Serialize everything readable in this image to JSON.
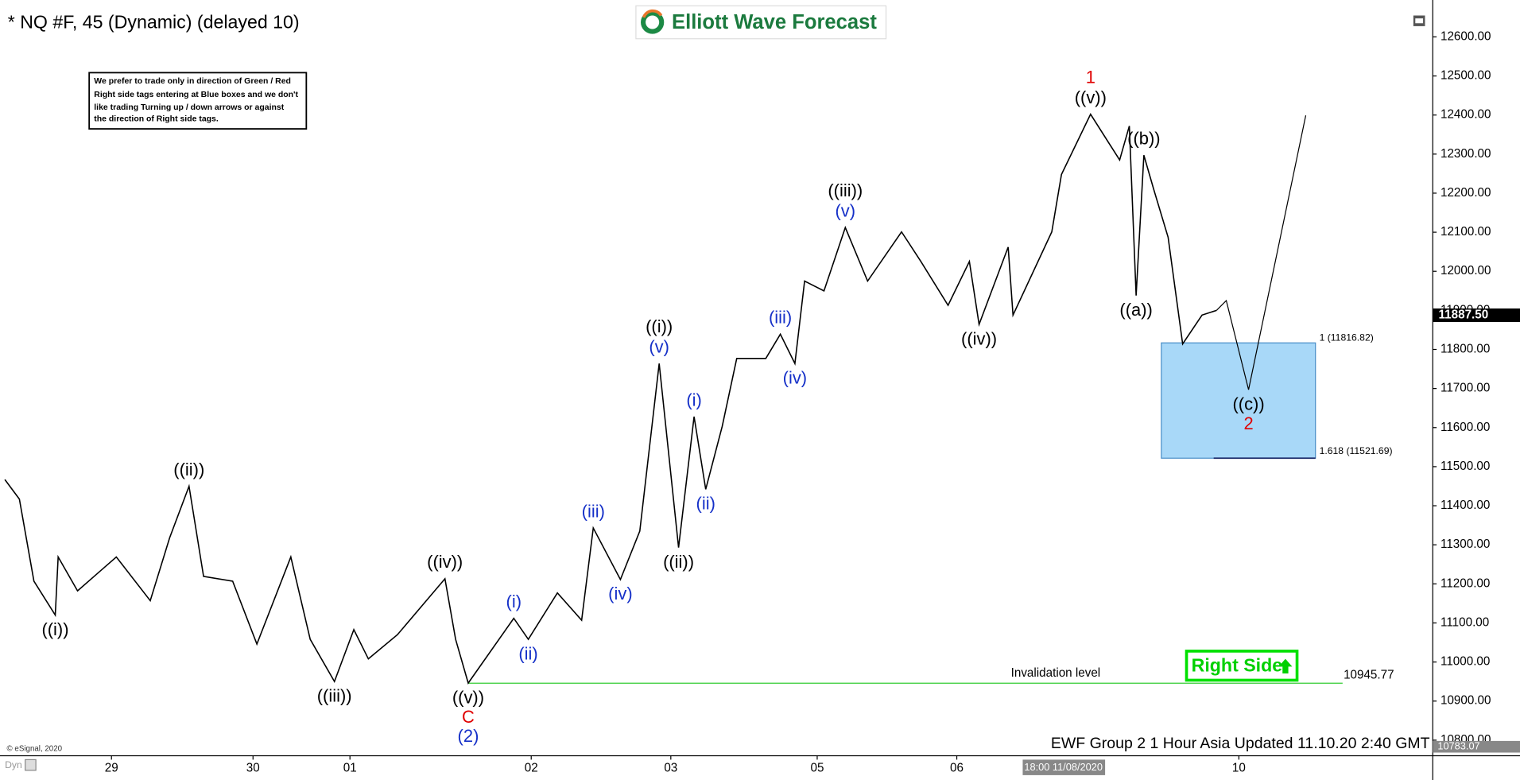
{
  "chart_data": {
    "type": "line",
    "title": "* NQ #F, 45 (Dynamic) (delayed 10)",
    "logo": "Elliott Wave Forecast",
    "note": [
      "We prefer to trade only in direction of Green / Red",
      "Right side tags entering at Blue boxes and we don't",
      "like trading Turning up / down arrows or against",
      "the direction of Right side tags."
    ],
    "footer": "EWF Group 2   1 Hour Asia Updated 11.10.20 2:40 GMT",
    "copyright": "© eSignal, 2020",
    "corner_label": "Dyn",
    "crosshair_label": "18:00 11/08/2020",
    "right_side_tag": "Right Side",
    "xlim": [
      0,
      1473
    ],
    "xticks": [
      {
        "value": 110,
        "label": "29"
      },
      {
        "value": 256,
        "label": "30"
      },
      {
        "value": 356,
        "label": "01"
      },
      {
        "value": 543,
        "label": "02"
      },
      {
        "value": 687,
        "label": "03"
      },
      {
        "value": 838,
        "label": "05"
      },
      {
        "value": 982,
        "label": "06"
      },
      {
        "value": 1273,
        "label": "10"
      }
    ],
    "ylim": [
      10760,
      12682
    ],
    "yticks": [
      {
        "value": 10800,
        "label": "10800.00"
      },
      {
        "value": 10900,
        "label": "10900.00"
      },
      {
        "value": 11000,
        "label": "11000.00"
      },
      {
        "value": 11100,
        "label": "11100.00"
      },
      {
        "value": 11200,
        "label": "11200.00"
      },
      {
        "value": 11300,
        "label": "11300.00"
      },
      {
        "value": 11400,
        "label": "11400.00"
      },
      {
        "value": 11500,
        "label": "11500.00"
      },
      {
        "value": 11600,
        "label": "11600.00"
      },
      {
        "value": 11700,
        "label": "11700.00"
      },
      {
        "value": 11800,
        "label": "11800.00"
      },
      {
        "value": 11900,
        "label": "11900.00"
      },
      {
        "value": 12000,
        "label": "12000.00"
      },
      {
        "value": 12100,
        "label": "12100.00"
      },
      {
        "value": 12200,
        "label": "12200.00"
      },
      {
        "value": 12300,
        "label": "12300.00"
      },
      {
        "value": 12400,
        "label": "12400.00"
      },
      {
        "value": 12500,
        "label": "12500.00"
      },
      {
        "value": 12600,
        "label": "12600.00"
      }
    ],
    "series": [
      {
        "color": "#000000",
        "x": [
          0,
          15,
          30,
          52,
          55,
          75,
          115,
          150,
          170,
          190,
          205,
          235,
          260,
          295,
          315,
          340,
          360,
          375,
          405,
          454,
          465,
          478,
          525,
          540,
          570,
          595,
          607,
          635,
          655,
          675,
          695,
          711,
          723,
          740,
          755,
          785,
          800,
          815,
          825,
          845,
          867,
          890,
          925,
          945,
          973,
          995,
          1005,
          1035,
          1040,
          1080,
          1090,
          1120,
          1150,
          1160,
          1167,
          1175,
          1185,
          1200,
          1215,
          1235,
          1250
        ],
        "values": [
          11467,
          11417,
          11207,
          11120,
          11269,
          11182,
          11269,
          11157,
          11318,
          11450,
          11219,
          11207,
          11046,
          11269,
          11058,
          10950,
          11083,
          11008,
          11070,
          11213,
          11058,
          10946,
          11112,
          11058,
          11177,
          11107,
          11343,
          11211,
          11335,
          11764,
          11293,
          11628,
          11442,
          11603,
          11777,
          11777,
          11839,
          11764,
          11975,
          11950,
          12112,
          11975,
          12101,
          12025,
          11913,
          12025,
          11864,
          12062,
          11888,
          12101,
          12248,
          12402,
          12285,
          12372,
          11938,
          12297,
          12211,
          12087,
          11814,
          11888,
          11900
        ]
      },
      {
        "color": "#000000",
        "x": [
          1250,
          1260,
          1283,
          1342
        ],
        "values": [
          11900,
          11925,
          11697,
          12399
        ]
      }
    ],
    "annotations": [
      {
        "series": 0,
        "point": 3,
        "side": "below",
        "labels": [
          {
            "text": "((i))",
            "color": "#000000"
          }
        ]
      },
      {
        "series": 0,
        "point": 9,
        "side": "above",
        "labels": [
          {
            "text": "((ii))",
            "color": "#000000"
          }
        ]
      },
      {
        "series": 0,
        "point": 15,
        "side": "below",
        "labels": [
          {
            "text": "((iii))",
            "color": "#000000"
          }
        ]
      },
      {
        "series": 0,
        "point": 19,
        "side": "above",
        "labels": [
          {
            "text": "((iv))",
            "color": "#000000"
          }
        ]
      },
      {
        "series": 0,
        "point": 21,
        "side": "below",
        "labels": [
          {
            "text": "((v))",
            "color": "#000000"
          },
          {
            "text": "C",
            "color": "#e00000"
          },
          {
            "text": "(2)",
            "color": "#1530c8"
          }
        ]
      },
      {
        "series": 0,
        "point": 22,
        "side": "above",
        "labels": [
          {
            "text": "(i)",
            "color": "#1530c8"
          }
        ]
      },
      {
        "series": 0,
        "point": 23,
        "side": "below",
        "labels": [
          {
            "text": "(ii)",
            "color": "#1530c8"
          }
        ]
      },
      {
        "series": 0,
        "point": 26,
        "side": "above",
        "labels": [
          {
            "text": "(iii)",
            "color": "#1530c8"
          }
        ]
      },
      {
        "series": 0,
        "point": 27,
        "side": "below",
        "labels": [
          {
            "text": "(iv)",
            "color": "#1530c8"
          }
        ]
      },
      {
        "series": 0,
        "point": 29,
        "side": "above",
        "labels": [
          {
            "text": "(v)",
            "color": "#1530c8"
          },
          {
            "text": "((i))",
            "color": "#000000"
          }
        ]
      },
      {
        "series": 0,
        "point": 30,
        "side": "below",
        "labels": [
          {
            "text": "((ii))",
            "color": "#000000"
          }
        ]
      },
      {
        "series": 0,
        "point": 31,
        "side": "above",
        "labels": [
          {
            "text": "(i)",
            "color": "#1530c8"
          }
        ]
      },
      {
        "series": 0,
        "point": 32,
        "side": "below",
        "labels": [
          {
            "text": "(ii)",
            "color": "#1530c8"
          }
        ]
      },
      {
        "series": 0,
        "point": 36,
        "side": "above",
        "labels": [
          {
            "text": "(iii)",
            "color": "#1530c8"
          }
        ]
      },
      {
        "series": 0,
        "point": 37,
        "side": "below",
        "labels": [
          {
            "text": "(iv)",
            "color": "#1530c8"
          }
        ]
      },
      {
        "series": 0,
        "point": 40,
        "side": "above",
        "labels": [
          {
            "text": "(v)",
            "color": "#1530c8"
          },
          {
            "text": "((iii))",
            "color": "#000000"
          }
        ]
      },
      {
        "series": 0,
        "point": 46,
        "side": "below",
        "labels": [
          {
            "text": "((iv))",
            "color": "#000000"
          }
        ]
      },
      {
        "series": 0,
        "point": 51,
        "side": "above",
        "labels": [
          {
            "text": "((v))",
            "color": "#000000"
          },
          {
            "text": "1",
            "color": "#e00000"
          }
        ]
      },
      {
        "series": 0,
        "point": 54,
        "side": "below",
        "labels": [
          {
            "text": "((a))",
            "color": "#000000"
          }
        ]
      },
      {
        "series": 0,
        "point": 55,
        "side": "above",
        "labels": [
          {
            "text": "((b))",
            "color": "#000000"
          }
        ]
      },
      {
        "series": 1,
        "point": 2,
        "side": "below",
        "labels": [
          {
            "text": "((c))",
            "color": "#000000"
          },
          {
            "text": "2",
            "color": "#e00000"
          }
        ]
      }
    ],
    "zone": {
      "upper": 11816.82,
      "upper_label": "1 (11816.82)",
      "lower": 11521.69,
      "lower_label": "1.618 (11521.69)",
      "color": "#a8d8f8"
    },
    "invalidation": {
      "value": 10945.77,
      "label": "Invalidation level",
      "color": "#33cc33"
    },
    "current_price": {
      "value": 11887.5,
      "label": "11887.50"
    },
    "bottom_price": {
      "value": 10783.07,
      "label": "10783.07"
    }
  }
}
